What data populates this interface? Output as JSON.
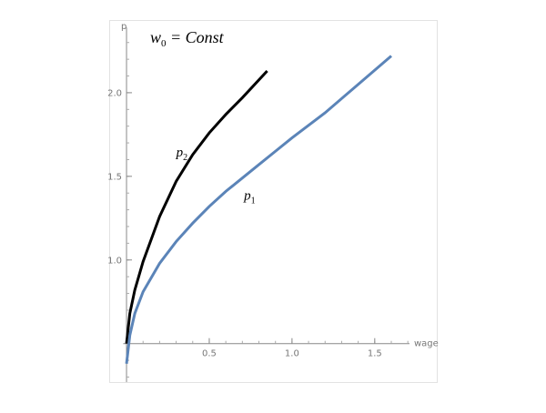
{
  "chart_data": {
    "type": "line",
    "annotation": {
      "text": "w",
      "sub": "0",
      "rest": " = Const"
    },
    "x_label": "wage",
    "y_label": "p",
    "xlim": [
      -0.02,
      1.71
    ],
    "ylim": [
      0.27,
      2.39
    ],
    "x_axis_at": 0.5,
    "xticks": [
      0.5,
      {
        "value": 1,
        "label": "1.0"
      },
      1.5
    ],
    "yticks": [
      {
        "value": 1,
        "label": "1.0"
      },
      1.5,
      {
        "value": 2,
        "label": "2.0"
      }
    ],
    "minor_tick_step": 0.1,
    "series": [
      {
        "label": {
          "text": "p",
          "sub": "2"
        },
        "color": "#000000",
        "x": [
          0,
          0.02,
          0.05,
          0.1,
          0.2,
          0.3,
          0.4,
          0.5,
          0.6,
          0.7,
          0.85
        ],
        "values": [
          0.5,
          0.68,
          0.82,
          0.99,
          1.26,
          1.47,
          1.63,
          1.76,
          1.87,
          1.97,
          2.13
        ],
        "label_at": [
          0.3,
          1.62
        ]
      },
      {
        "label": {
          "text": "p",
          "sub": "1"
        },
        "color": "#5b84b8",
        "x": [
          0,
          0.02,
          0.05,
          0.1,
          0.2,
          0.3,
          0.4,
          0.5,
          0.6,
          0.7,
          0.8,
          0.9,
          1.0,
          1.2,
          1.4,
          1.6
        ],
        "values": [
          0.38,
          0.55,
          0.68,
          0.81,
          0.98,
          1.11,
          1.22,
          1.32,
          1.41,
          1.49,
          1.57,
          1.65,
          1.73,
          1.88,
          2.05,
          2.22
        ],
        "label_at": [
          0.71,
          1.36
        ]
      }
    ]
  }
}
